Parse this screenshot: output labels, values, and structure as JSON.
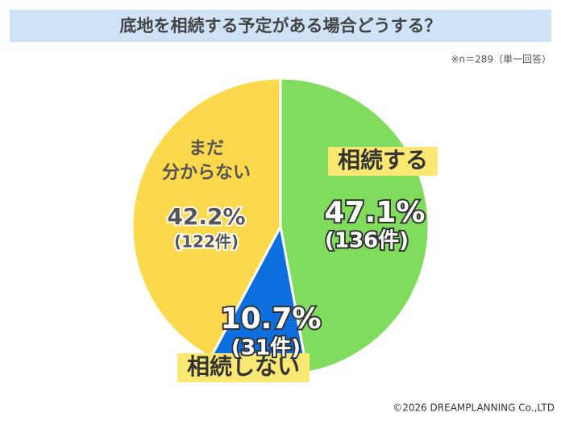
{
  "chart_data": {
    "type": "pie",
    "title": "底地を相続する予定がある場合どうする？",
    "note": "※n＝289（単一回答）",
    "categories": [
      "相続する",
      "相続しない",
      "まだ\n分からない"
    ],
    "values": [
      47.1,
      10.7,
      42.2
    ],
    "value_labels": [
      "47.1%",
      "10.7%",
      "42.2%"
    ],
    "counts": [
      136,
      31,
      122
    ],
    "count_labels": [
      "(136件)",
      "(31件)",
      "(122件)"
    ],
    "colors": [
      "#80dc5c",
      "#0b6fe0",
      "#fcd94c"
    ],
    "copyright": "©2026 DREAMPLANNING Co.,LTD"
  }
}
